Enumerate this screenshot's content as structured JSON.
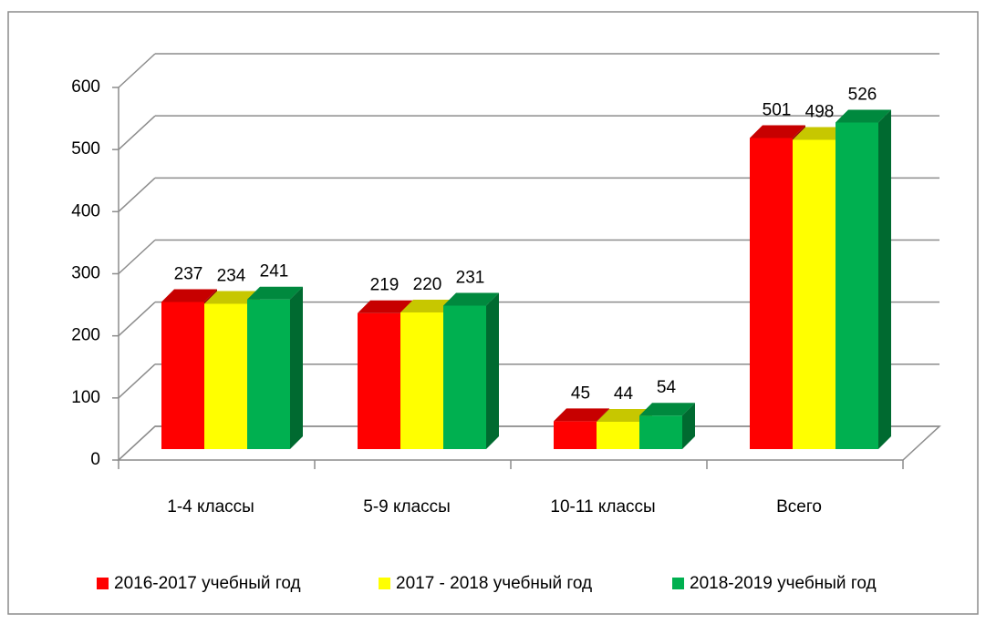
{
  "chart_data": {
    "type": "bar3d",
    "categories": [
      "1-4 классы",
      "5-9 классы",
      "10-11 классы",
      "Всего"
    ],
    "series": [
      {
        "name": "2016-2017 учебный год",
        "color": "#ff0000",
        "values": [
          237,
          219,
          45,
          501
        ]
      },
      {
        "name": "2017 - 2018 учебный год",
        "color": "#ffff00",
        "values": [
          234,
          220,
          44,
          498
        ]
      },
      {
        "name": "2018-2019 учебный год",
        "color": "#00b050",
        "values": [
          241,
          231,
          54,
          526
        ]
      }
    ],
    "ylim": [
      0,
      600
    ],
    "yticks": [
      0,
      100,
      200,
      300,
      400,
      500,
      600
    ],
    "grid": true,
    "legend": "bottom"
  }
}
